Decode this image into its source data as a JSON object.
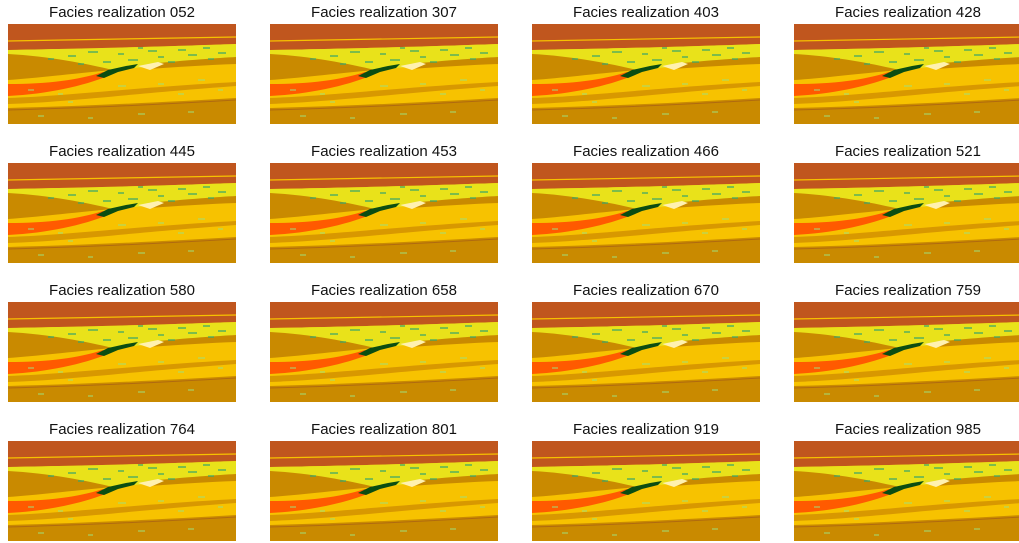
{
  "panels": [
    {
      "title": "Facies realization 052"
    },
    {
      "title": "Facies realization 307"
    },
    {
      "title": "Facies realization 403"
    },
    {
      "title": "Facies realization 428"
    },
    {
      "title": "Facies realization 445"
    },
    {
      "title": "Facies realization 453"
    },
    {
      "title": "Facies realization 466"
    },
    {
      "title": "Facies realization 521"
    },
    {
      "title": "Facies realization 580"
    },
    {
      "title": "Facies realization 658"
    },
    {
      "title": "Facies realization 670"
    },
    {
      "title": "Facies realization 759"
    },
    {
      "title": "Facies realization 764"
    },
    {
      "title": "Facies realization 801"
    },
    {
      "title": "Facies realization 919"
    },
    {
      "title": "Facies realization 985"
    }
  ]
}
